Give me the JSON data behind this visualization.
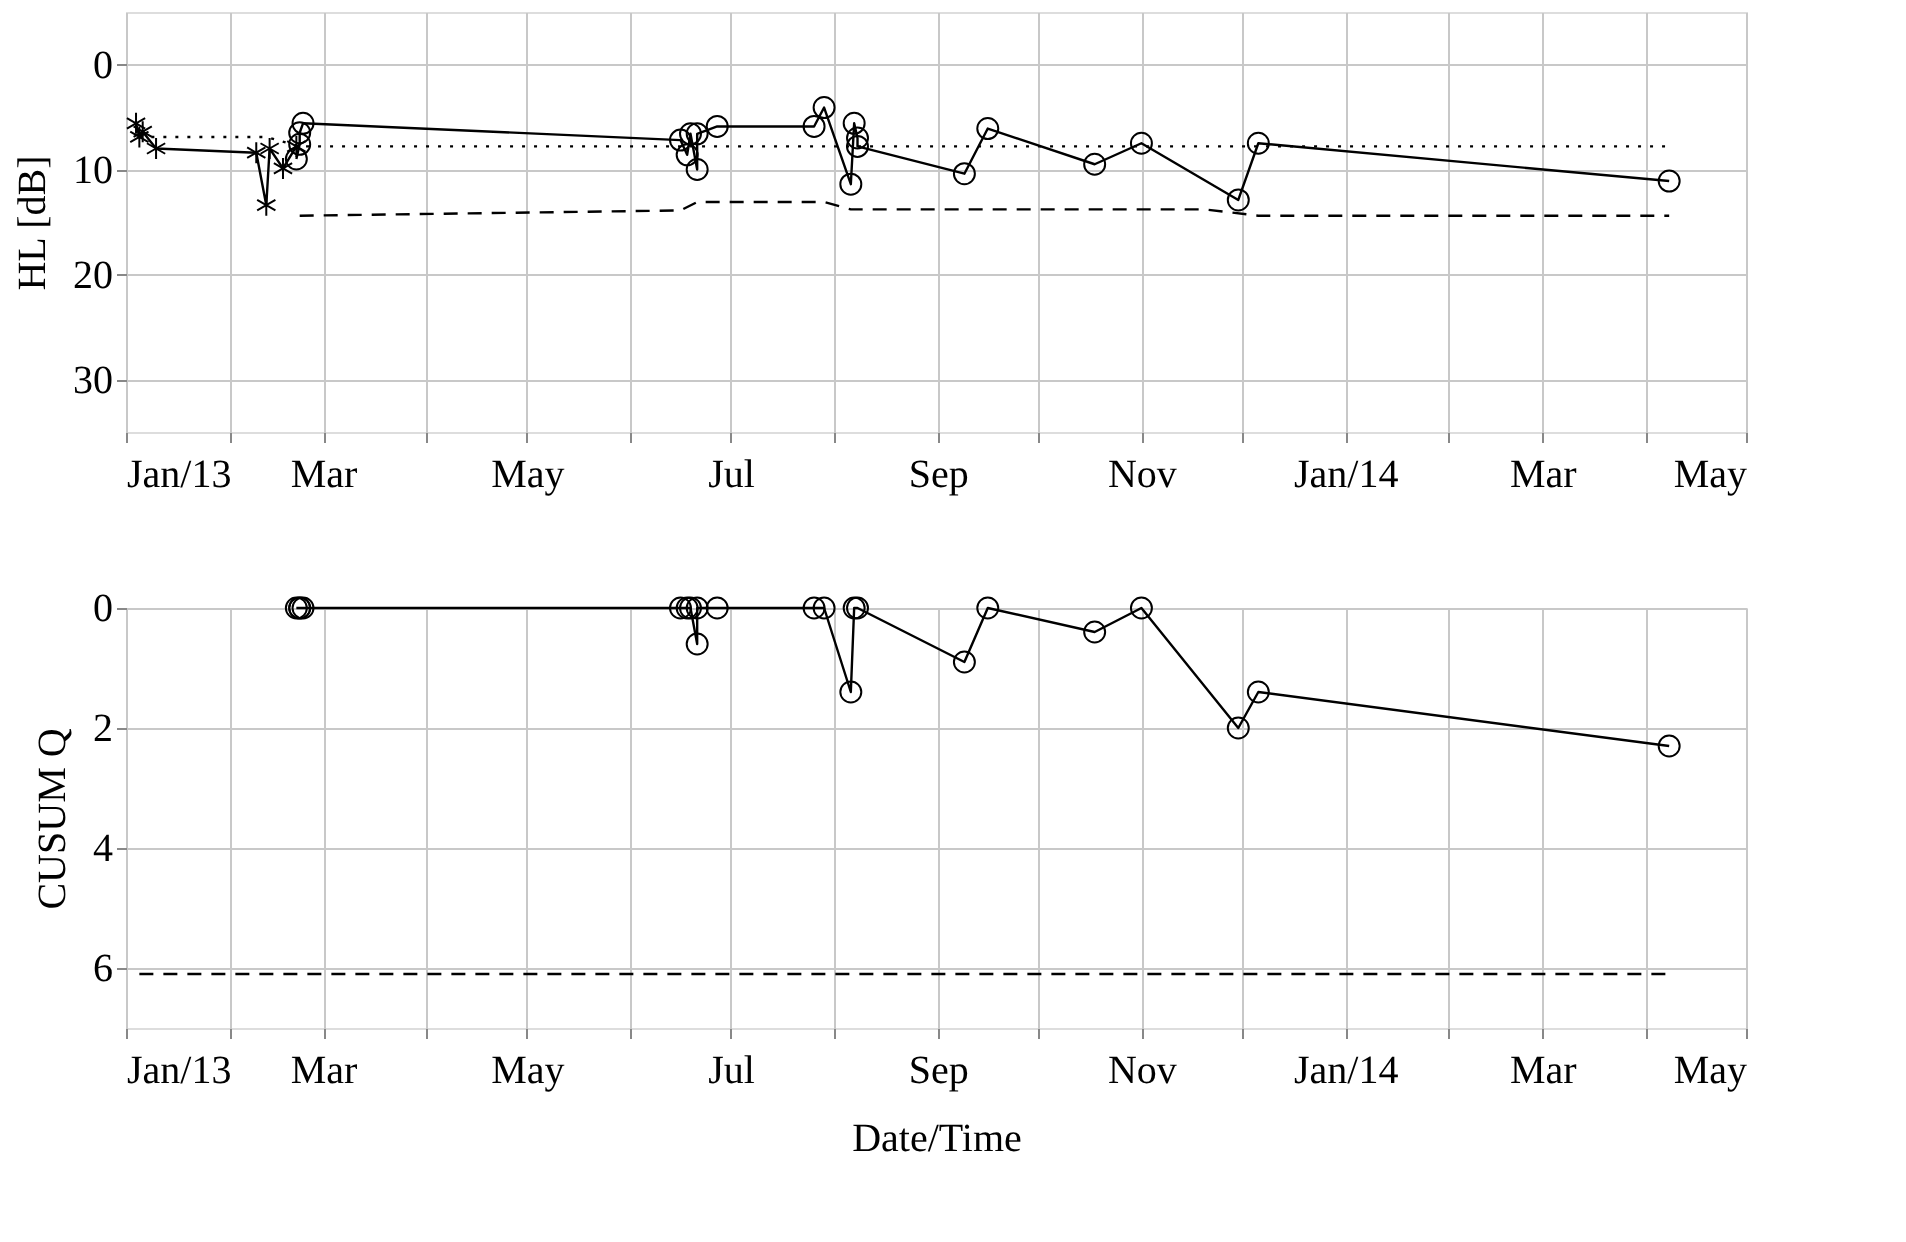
{
  "chart_data": [
    {
      "type": "line",
      "ylabel": "HL [dB]",
      "ylim": [
        35,
        -5
      ],
      "yticks": [
        0,
        10,
        20,
        30
      ],
      "xlim": [
        "2013-01-01",
        "2014-05-01"
      ],
      "xticks": [
        {
          "value": "2013-01-01",
          "label": "Jan/13"
        },
        {
          "value": "2013-02-01",
          "label": null
        },
        {
          "value": "2013-03-01",
          "label": "Mar"
        },
        {
          "value": "2013-04-01",
          "label": null
        },
        {
          "value": "2013-05-01",
          "label": "May"
        },
        {
          "value": "2013-06-01",
          "label": null
        },
        {
          "value": "2013-07-01",
          "label": "Jul"
        },
        {
          "value": "2013-08-01",
          "label": null
        },
        {
          "value": "2013-09-01",
          "label": "Sep"
        },
        {
          "value": "2013-10-01",
          "label": null
        },
        {
          "value": "2013-11-01",
          "label": "Nov"
        },
        {
          "value": "2013-12-01",
          "label": null
        },
        {
          "value": "2014-01-01",
          "label": "Jan/14"
        },
        {
          "value": "2014-02-01",
          "label": null
        },
        {
          "value": "2014-03-01",
          "label": "Mar"
        },
        {
          "value": "2014-04-01",
          "label": null
        },
        {
          "value": "2014-05-01",
          "label": "May"
        }
      ],
      "grid": true,
      "series": [
        {
          "color": "#000000",
          "marker": "cross",
          "line_style": "solid",
          "x": [
            "2013-01-04",
            "2013-01-05",
            "2013-01-06",
            "2013-01-10",
            "2013-02-09",
            "2013-02-12",
            "2013-02-13",
            "2013-02-17",
            "2013-02-21"
          ],
          "values": [
            5.6,
            6.9,
            6.4,
            8.0,
            8.4,
            13.4,
            8.0,
            9.9,
            7.8
          ]
        },
        {
          "color": "#000000",
          "marker": "circle",
          "line_style": "solid",
          "x": [
            "2013-02-21",
            "2013-02-22",
            "2013-02-22",
            "2013-02-23",
            "2013-06-16",
            "2013-06-18",
            "2013-06-19",
            "2013-06-21",
            "2013-06-21",
            "2013-06-27",
            "2013-07-26",
            "2013-07-29",
            "2013-08-06",
            "2013-08-07",
            "2013-08-08",
            "2013-08-08",
            "2013-09-09",
            "2013-09-16",
            "2013-10-18",
            "2013-11-01",
            "2013-11-30",
            "2013-12-06",
            "2014-04-08"
          ],
          "values": [
            9.0,
            7.6,
            6.5,
            5.6,
            7.2,
            8.6,
            6.6,
            10.0,
            6.6,
            5.9,
            5.9,
            4.1,
            11.4,
            5.6,
            7.0,
            7.8,
            10.4,
            6.1,
            9.5,
            7.5,
            12.9,
            7.5,
            11.1
          ]
        },
        {
          "color": "#000000",
          "marker": "none",
          "line_style": "dotted",
          "x": [
            "2013-01-05",
            "2013-02-12",
            "2013-02-22",
            "2014-04-08"
          ],
          "values": [
            6.9,
            6.9,
            7.8,
            7.8
          ]
        },
        {
          "color": "#000000",
          "marker": "none",
          "line_style": "dashed",
          "x": [
            "2013-02-22",
            "2013-06-16",
            "2013-06-21",
            "2013-07-29",
            "2013-08-06",
            "2013-11-20",
            "2013-12-06",
            "2014-04-08"
          ],
          "values": [
            14.4,
            13.9,
            13.1,
            13.1,
            13.8,
            13.8,
            14.4,
            14.4
          ]
        }
      ]
    },
    {
      "type": "line",
      "ylabel": "CUSUM Q",
      "xlabel": "Date/Time",
      "ylim": [
        7,
        0
      ],
      "yticks": [
        0,
        2,
        4,
        6
      ],
      "xlim": [
        "2013-01-01",
        "2014-05-01"
      ],
      "xticks": [
        {
          "value": "2013-01-01",
          "label": "Jan/13"
        },
        {
          "value": "2013-02-01",
          "label": null
        },
        {
          "value": "2013-03-01",
          "label": "Mar"
        },
        {
          "value": "2013-04-01",
          "label": null
        },
        {
          "value": "2013-05-01",
          "label": "May"
        },
        {
          "value": "2013-06-01",
          "label": null
        },
        {
          "value": "2013-07-01",
          "label": "Jul"
        },
        {
          "value": "2013-08-01",
          "label": null
        },
        {
          "value": "2013-09-01",
          "label": "Sep"
        },
        {
          "value": "2013-10-01",
          "label": null
        },
        {
          "value": "2013-11-01",
          "label": "Nov"
        },
        {
          "value": "2013-12-01",
          "label": null
        },
        {
          "value": "2014-01-01",
          "label": "Jan/14"
        },
        {
          "value": "2014-02-01",
          "label": null
        },
        {
          "value": "2014-03-01",
          "label": "Mar"
        },
        {
          "value": "2014-04-01",
          "label": null
        },
        {
          "value": "2014-05-01",
          "label": "May"
        }
      ],
      "grid": true,
      "series": [
        {
          "color": "#000000",
          "marker": "circle",
          "line_style": "solid",
          "x": [
            "2013-02-21",
            "2013-02-22",
            "2013-02-22",
            "2013-02-23",
            "2013-06-16",
            "2013-06-18",
            "2013-06-19",
            "2013-06-21",
            "2013-06-21",
            "2013-06-27",
            "2013-07-26",
            "2013-07-29",
            "2013-08-06",
            "2013-08-07",
            "2013-08-08",
            "2013-09-09",
            "2013-09-16",
            "2013-10-18",
            "2013-11-01",
            "2013-11-30",
            "2013-12-06",
            "2014-04-08"
          ],
          "values": [
            0,
            0,
            0,
            0,
            0,
            0,
            0,
            0.6,
            0,
            0,
            0,
            0,
            1.4,
            0,
            0,
            0.9,
            0,
            0.4,
            0,
            2.0,
            1.4,
            2.3
          ]
        },
        {
          "color": "#000000",
          "marker": "none",
          "line_style": "dashed",
          "x": [
            "2013-01-05",
            "2014-04-08"
          ],
          "values": [
            6.1,
            6.1
          ]
        }
      ]
    }
  ]
}
